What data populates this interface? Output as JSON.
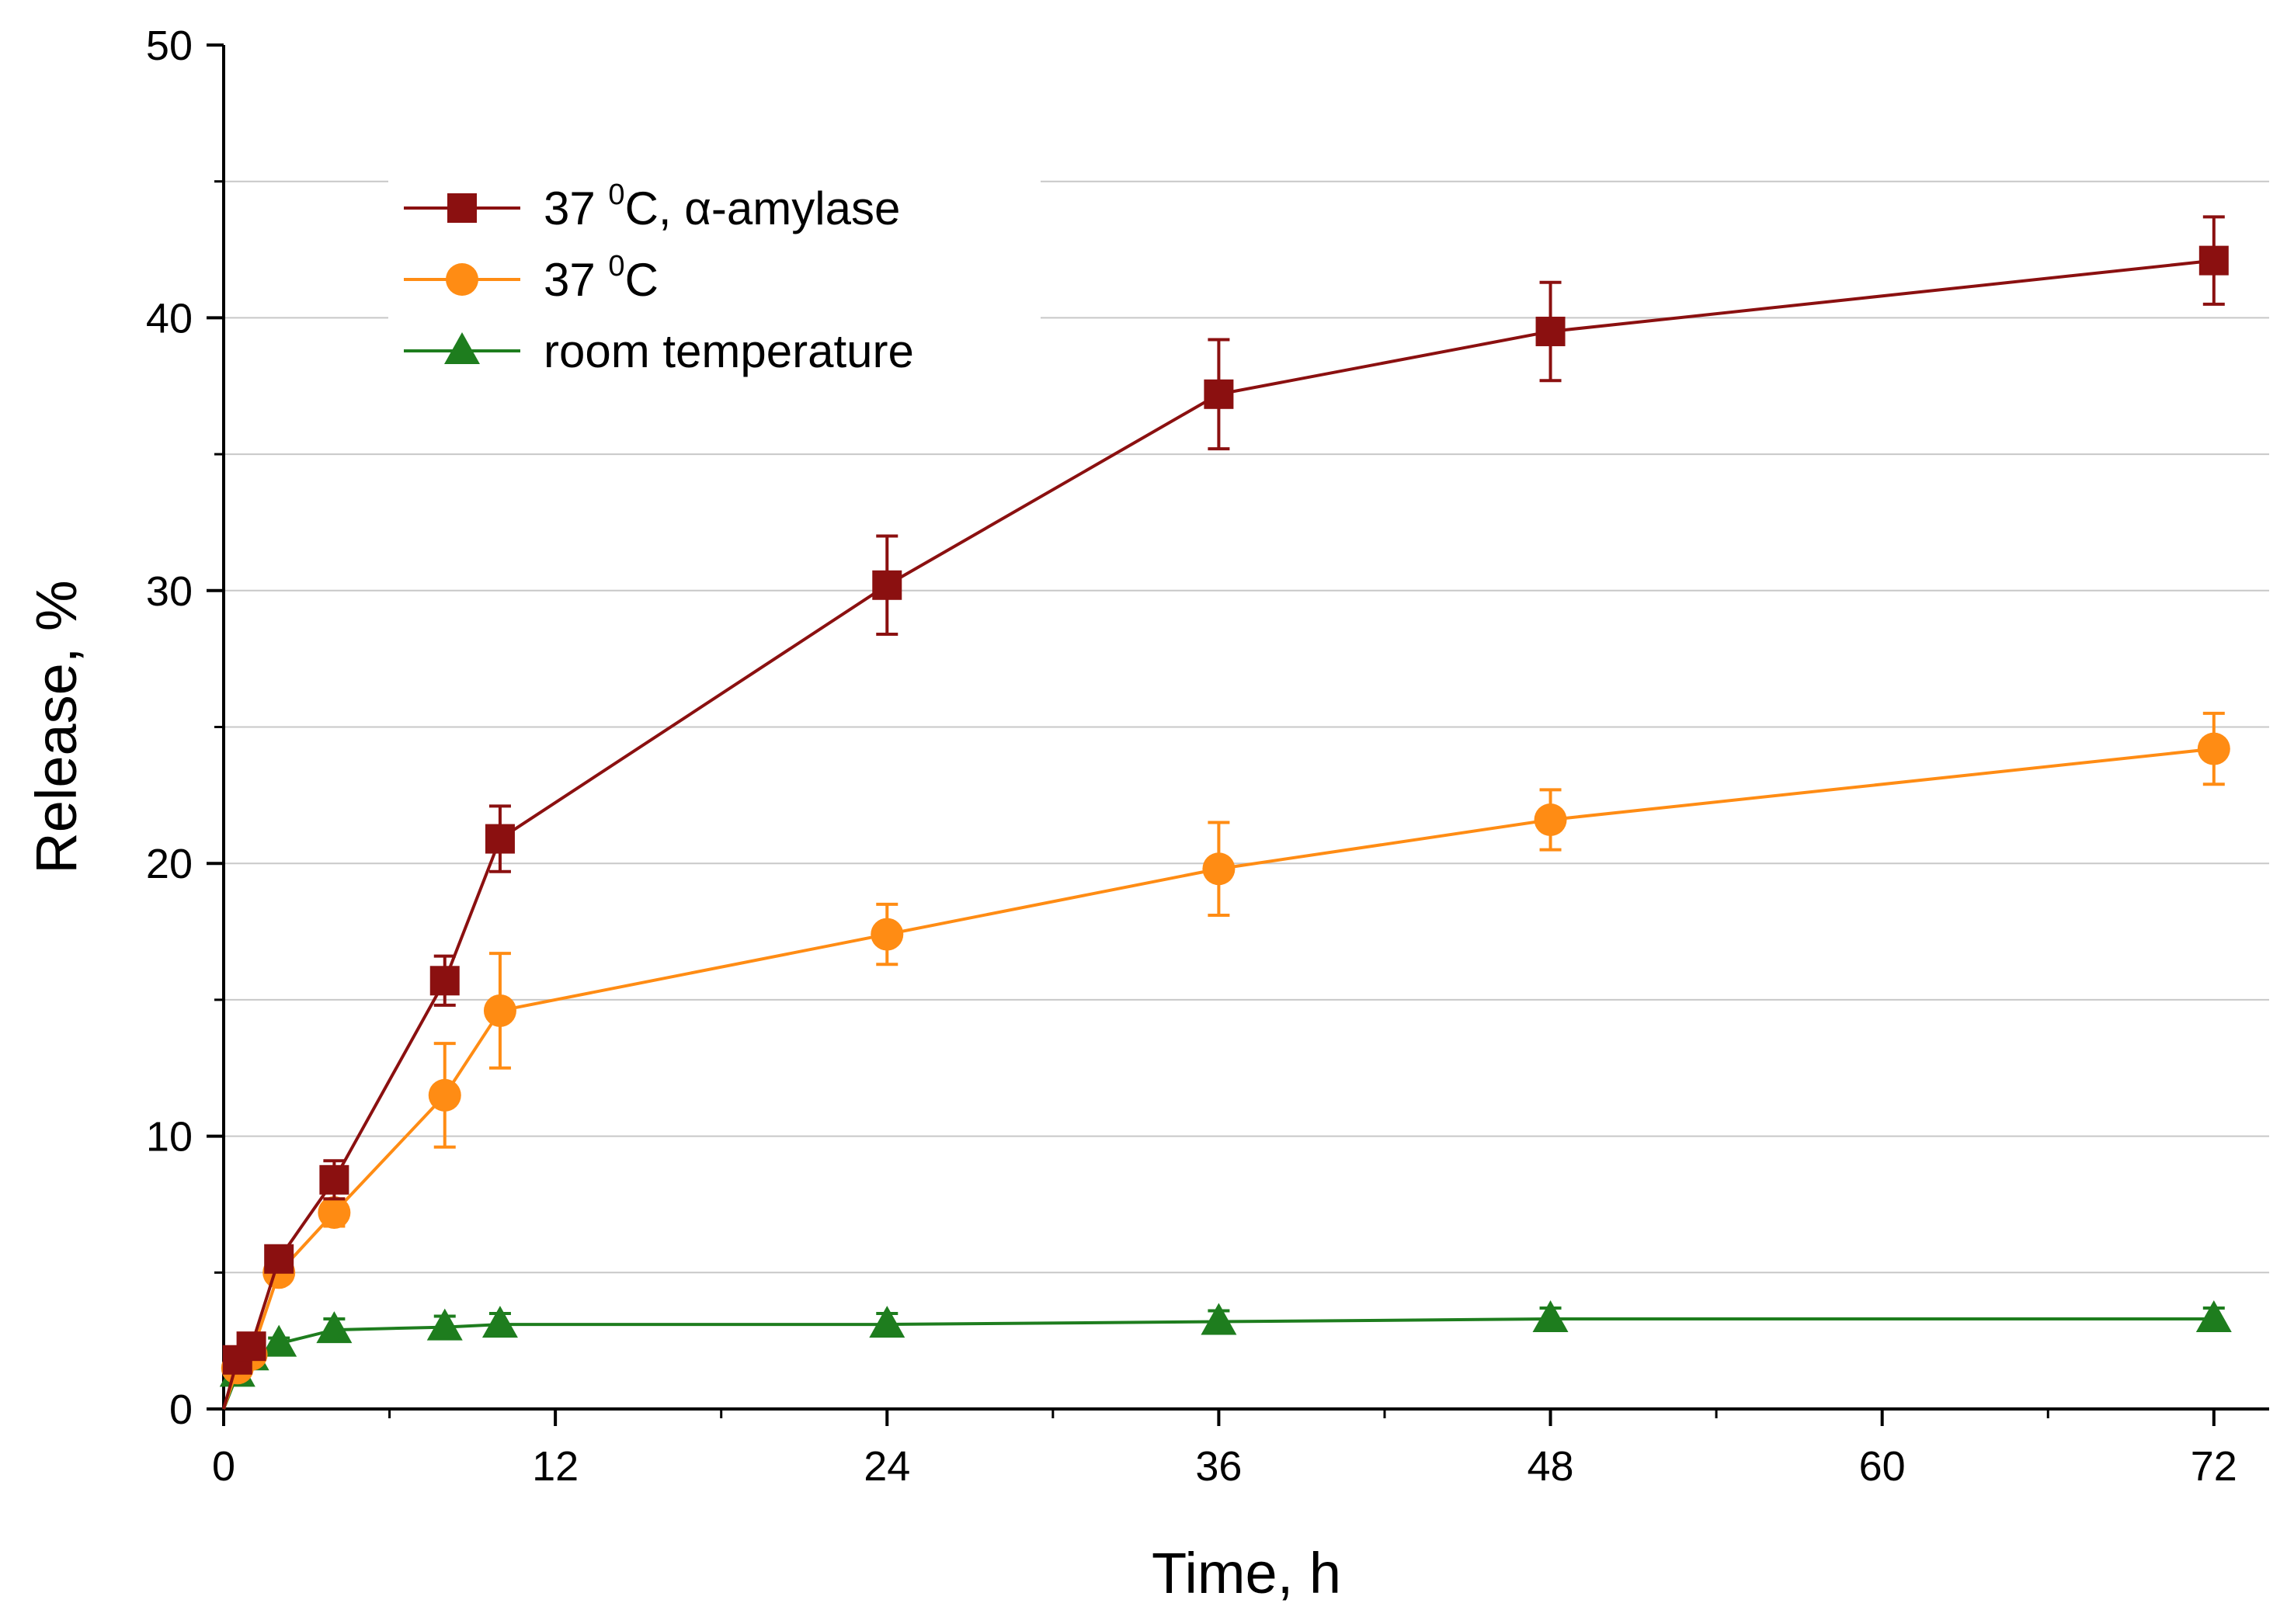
{
  "chart_data": {
    "type": "line",
    "xlabel": "Time, h",
    "ylabel": "Release, %",
    "xlim": [
      0,
      74
    ],
    "ylim": [
      0,
      50
    ],
    "x_ticks": [
      0,
      12,
      24,
      36,
      48,
      60,
      72
    ],
    "y_ticks": [
      0,
      10,
      20,
      30,
      40,
      50
    ],
    "grid": "horizontal",
    "legend_position": "top-left",
    "series": [
      {
        "name": "37 ⁰C, α-amylase",
        "legend_parts": [
          "37 ",
          "0",
          "C, α-amylase"
        ],
        "color": "#8b1010",
        "marker": "square",
        "x": [
          0,
          0.5,
          1,
          2,
          4,
          8,
          10,
          24,
          36,
          48,
          72
        ],
        "y": [
          0,
          1.8,
          2.3,
          5.5,
          8.4,
          15.7,
          20.9,
          30.2,
          37.2,
          39.5,
          42.1
        ],
        "err": [
          0,
          0.3,
          0.3,
          0.3,
          0.7,
          0.9,
          1.2,
          1.8,
          2.0,
          1.8,
          1.6
        ]
      },
      {
        "name": "37 ⁰C",
        "legend_parts": [
          "37 ",
          "0",
          "C"
        ],
        "color": "#ff8c14",
        "marker": "circle",
        "x": [
          0,
          0.5,
          1,
          2,
          4,
          8,
          10,
          24,
          36,
          48,
          72
        ],
        "y": [
          0,
          1.5,
          2.0,
          5.0,
          7.2,
          11.5,
          14.6,
          17.4,
          19.8,
          21.6,
          24.2
        ],
        "err": [
          0,
          0.3,
          0.3,
          0.4,
          0.5,
          1.9,
          2.1,
          1.1,
          1.7,
          1.1,
          1.3
        ]
      },
      {
        "name": "room temperature",
        "legend_parts": [
          "room temperature",
          "",
          ""
        ],
        "color": "#1e7d1e",
        "marker": "triangle",
        "x": [
          0,
          0.5,
          1,
          2,
          4,
          8,
          10,
          24,
          36,
          48,
          72
        ],
        "y": [
          0,
          1.3,
          1.9,
          2.4,
          2.9,
          3.0,
          3.1,
          3.1,
          3.2,
          3.3,
          3.3
        ],
        "err": [
          0,
          0.2,
          0.2,
          0.2,
          0.4,
          0.4,
          0.4,
          0.4,
          0.4,
          0.4,
          0.4
        ]
      }
    ]
  }
}
